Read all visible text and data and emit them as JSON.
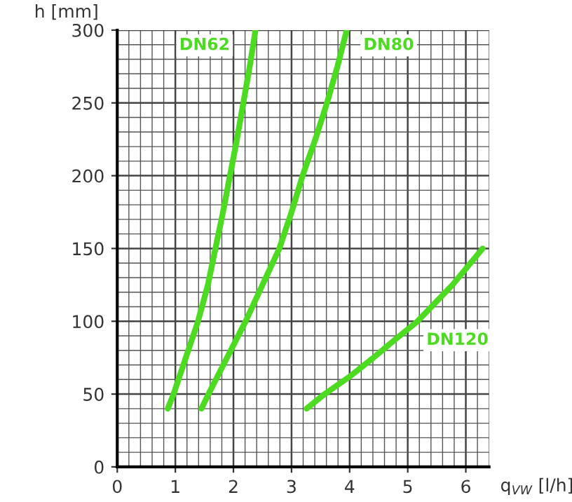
{
  "chart_data": {
    "type": "line",
    "xlabel": "q$_{VW}$ [l/h]",
    "ylabel": "h [mm]",
    "xlim": [
      0,
      6.4
    ],
    "ylim": [
      0,
      300
    ],
    "xticks": [
      0,
      1,
      2,
      3,
      4,
      5,
      6
    ],
    "yticks": [
      0,
      50,
      100,
      150,
      200,
      250,
      300
    ],
    "grid": true,
    "marker": "none",
    "line_style": "solid",
    "series": [
      {
        "color": "#4ddb22",
        "x": [
          0.87,
          0.97,
          1.18,
          1.39,
          1.56,
          1.69,
          1.82,
          1.94,
          2.06,
          2.17,
          2.28,
          2.38
        ],
        "values": [
          40,
          50,
          75,
          100,
          125,
          150,
          175,
          200,
          225,
          250,
          275,
          300
        ]
      },
      {
        "color": "#4ddb22",
        "x": [
          1.45,
          1.57,
          1.89,
          2.21,
          2.5,
          2.79,
          3.0,
          3.19,
          3.41,
          3.61,
          3.79,
          3.95
        ],
        "values": [
          40,
          50,
          75,
          100,
          125,
          150,
          175,
          200,
          225,
          250,
          275,
          300
        ]
      },
      {
        "color": "#4ddb22",
        "x": [
          3.26,
          3.57,
          4.0,
          4.41,
          4.8,
          5.17,
          5.77,
          6.29
        ],
        "values": [
          40,
          50,
          62,
          75,
          88,
          100,
          125,
          150
        ]
      }
    ],
    "annotations": [
      "DN62",
      "DN80",
      "DN120"
    ]
  }
}
